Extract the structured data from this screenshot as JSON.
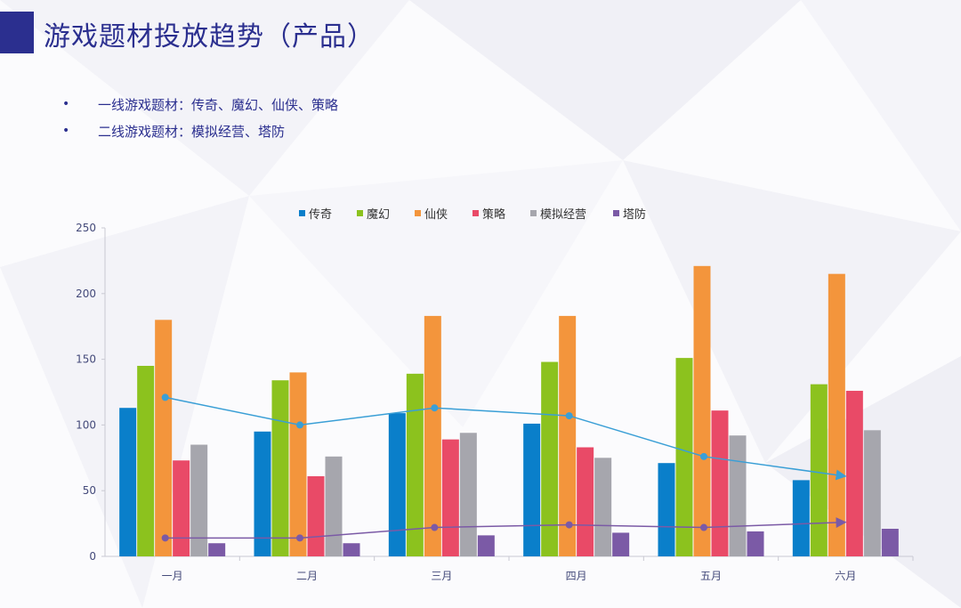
{
  "header": {
    "title": "游戏题材投放趋势（产品）"
  },
  "bullets": [
    {
      "text": "一线游戏题材：传奇、魔幻、仙侠、策略"
    },
    {
      "text": "二线游戏题材：模拟经营、塔防"
    }
  ],
  "chart_data": {
    "type": "bar",
    "categories": [
      "一月",
      "二月",
      "三月",
      "四月",
      "五月",
      "六月"
    ],
    "ylim": [
      0,
      250
    ],
    "yticks": [
      0,
      50,
      100,
      150,
      200,
      250
    ],
    "legend_position": "top",
    "grid": false,
    "series": [
      {
        "name": "传奇",
        "color": "#0a7fca",
        "values": [
          113,
          95,
          109,
          101,
          71,
          58
        ]
      },
      {
        "name": "魔幻",
        "color": "#8cc21e",
        "values": [
          145,
          134,
          139,
          148,
          151,
          131
        ]
      },
      {
        "name": "仙侠",
        "color": "#f3953c",
        "values": [
          180,
          140,
          183,
          183,
          221,
          215
        ]
      },
      {
        "name": "策略",
        "color": "#e94a67",
        "values": [
          73,
          61,
          89,
          83,
          111,
          126
        ]
      },
      {
        "name": "模拟经营",
        "color": "#a6a6ad",
        "values": [
          85,
          76,
          94,
          75,
          92,
          96
        ]
      },
      {
        "name": "塔防",
        "color": "#7b5aa6",
        "values": [
          10,
          10,
          16,
          18,
          19,
          21
        ]
      }
    ],
    "trend_lines": [
      {
        "series": "传奇",
        "color": "#3a9fd6",
        "values": [
          121,
          100,
          113,
          107,
          76,
          61
        ]
      },
      {
        "series": "塔防",
        "color": "#7b5aa6",
        "values": [
          14,
          14,
          22,
          24,
          22,
          26
        ]
      }
    ]
  }
}
